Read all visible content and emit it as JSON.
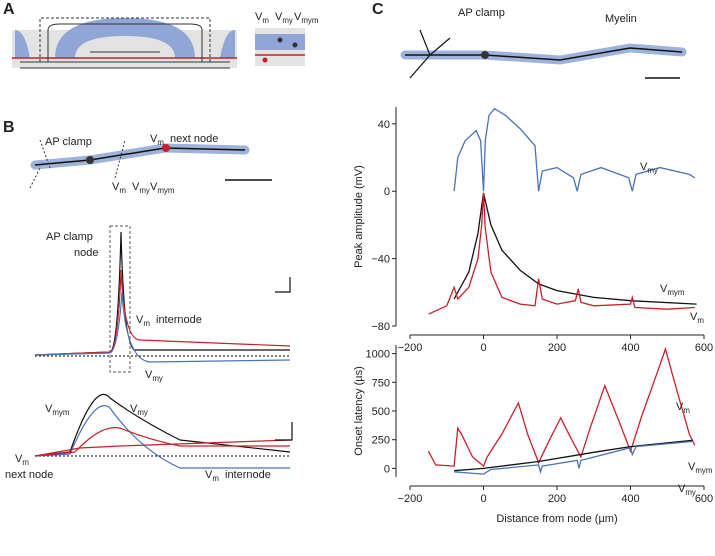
{
  "panels": {
    "a": {
      "label": "A",
      "legend": [
        "Vm",
        "Vmy",
        "Vmym"
      ]
    },
    "b": {
      "label": "B",
      "top": {
        "clamp": "AP clamp",
        "next": "next node",
        "next_v": "Vm",
        "legend": [
          "Vm",
          "Vmy",
          "Vmym"
        ]
      },
      "middle": {
        "clamp": [
          "AP clamp",
          "node"
        ],
        "internode": "internode",
        "internode_v": "Vm",
        "vmy": "Vmy"
      },
      "bottom": {
        "vmym": "Vmym",
        "vmy": "Vmy",
        "next_v": "Vm",
        "next": "next node",
        "internode_v": "Vm",
        "internode": "internode"
      }
    },
    "c": {
      "label": "C",
      "clamp": "AP clamp",
      "myelin": "Myelin"
    }
  },
  "chart_data": [
    {
      "type": "line",
      "ylabel": "Peak amplitude (mV)",
      "xlim": [
        -200,
        600
      ],
      "xticks": [
        {
          "value": -200,
          "label": "−200"
        },
        0,
        200,
        400,
        600
      ],
      "ylim": [
        -80,
        50
      ],
      "yticks": [
        {
          "value": -80,
          "label": "−80"
        },
        {
          "value": -40,
          "label": "−40"
        },
        0,
        40
      ],
      "series": [
        {
          "name": "Vmy",
          "color": "#4a72b8",
          "x": [
            -80,
            -70,
            -50,
            -20,
            -8,
            0,
            5,
            15,
            30,
            60,
            100,
            140,
            150,
            160,
            200,
            245,
            255,
            265,
            320,
            395,
            405,
            415,
            480,
            560,
            575
          ],
          "values": [
            0,
            20,
            30,
            36,
            30,
            0,
            30,
            45,
            49,
            45,
            37,
            27,
            0,
            12,
            14,
            8,
            0,
            10,
            14,
            8,
            0,
            10,
            14,
            10,
            8
          ]
        },
        {
          "name": "Vmym",
          "color": "#111111",
          "x": [
            -80,
            -40,
            -15,
            0,
            20,
            50,
            100,
            150,
            200,
            300,
            400,
            580
          ],
          "values": [
            -64,
            -48,
            -25,
            -1,
            -20,
            -35,
            -47,
            -55,
            -59,
            -63,
            -65,
            -67
          ]
        },
        {
          "name": "Vm",
          "color": "#c8202a",
          "x": [
            -150,
            -100,
            -80,
            -70,
            -40,
            -15,
            -5,
            0,
            5,
            20,
            50,
            100,
            140,
            150,
            160,
            200,
            250,
            258,
            265,
            300,
            400,
            405,
            412,
            500,
            575
          ],
          "values": [
            -73,
            -68,
            -57,
            -64,
            -57,
            -40,
            -20,
            -1,
            -22,
            -48,
            -63,
            -67,
            -68,
            -52,
            -64,
            -67,
            -65,
            -58,
            -66,
            -68,
            -67,
            -63,
            -69,
            -70,
            -69
          ]
        }
      ]
    },
    {
      "type": "line",
      "ylabel": "Onset latency (µs)",
      "xlabel": "Distance from node (µm)",
      "xlim": [
        -200,
        600
      ],
      "xticks": [
        {
          "value": -200,
          "label": "−200"
        },
        0,
        200,
        400,
        600
      ],
      "ylim": [
        -75,
        1075
      ],
      "yticks": [
        0,
        250,
        500,
        750,
        1000
      ],
      "series": [
        {
          "name": "Vm",
          "color": "#c8202a",
          "x": [
            -150,
            -130,
            -80,
            -70,
            -60,
            -30,
            0,
            10,
            50,
            95,
            120,
            150,
            180,
            210,
            240,
            265,
            290,
            330,
            370,
            400,
            430,
            480,
            495,
            520,
            560,
            575
          ],
          "values": [
            150,
            30,
            20,
            350,
            300,
            100,
            20,
            100,
            300,
            570,
            300,
            50,
            250,
            440,
            250,
            100,
            350,
            720,
            400,
            150,
            450,
            900,
            1040,
            750,
            300,
            200
          ]
        },
        {
          "name": "Vmym",
          "color": "#111111",
          "x": [
            -80,
            0,
            150,
            300,
            400,
            570
          ],
          "values": [
            -20,
            0,
            60,
            140,
            190,
            245
          ]
        },
        {
          "name": "Vmy",
          "color": "#4a72b8",
          "x": [
            -80,
            -40,
            0,
            20,
            150,
            155,
            160,
            255,
            260,
            265,
            400,
            405,
            415,
            570
          ],
          "values": [
            -30,
            -40,
            -50,
            -10,
            30,
            -30,
            20,
            70,
            0,
            70,
            180,
            120,
            190,
            235
          ]
        }
      ]
    }
  ]
}
